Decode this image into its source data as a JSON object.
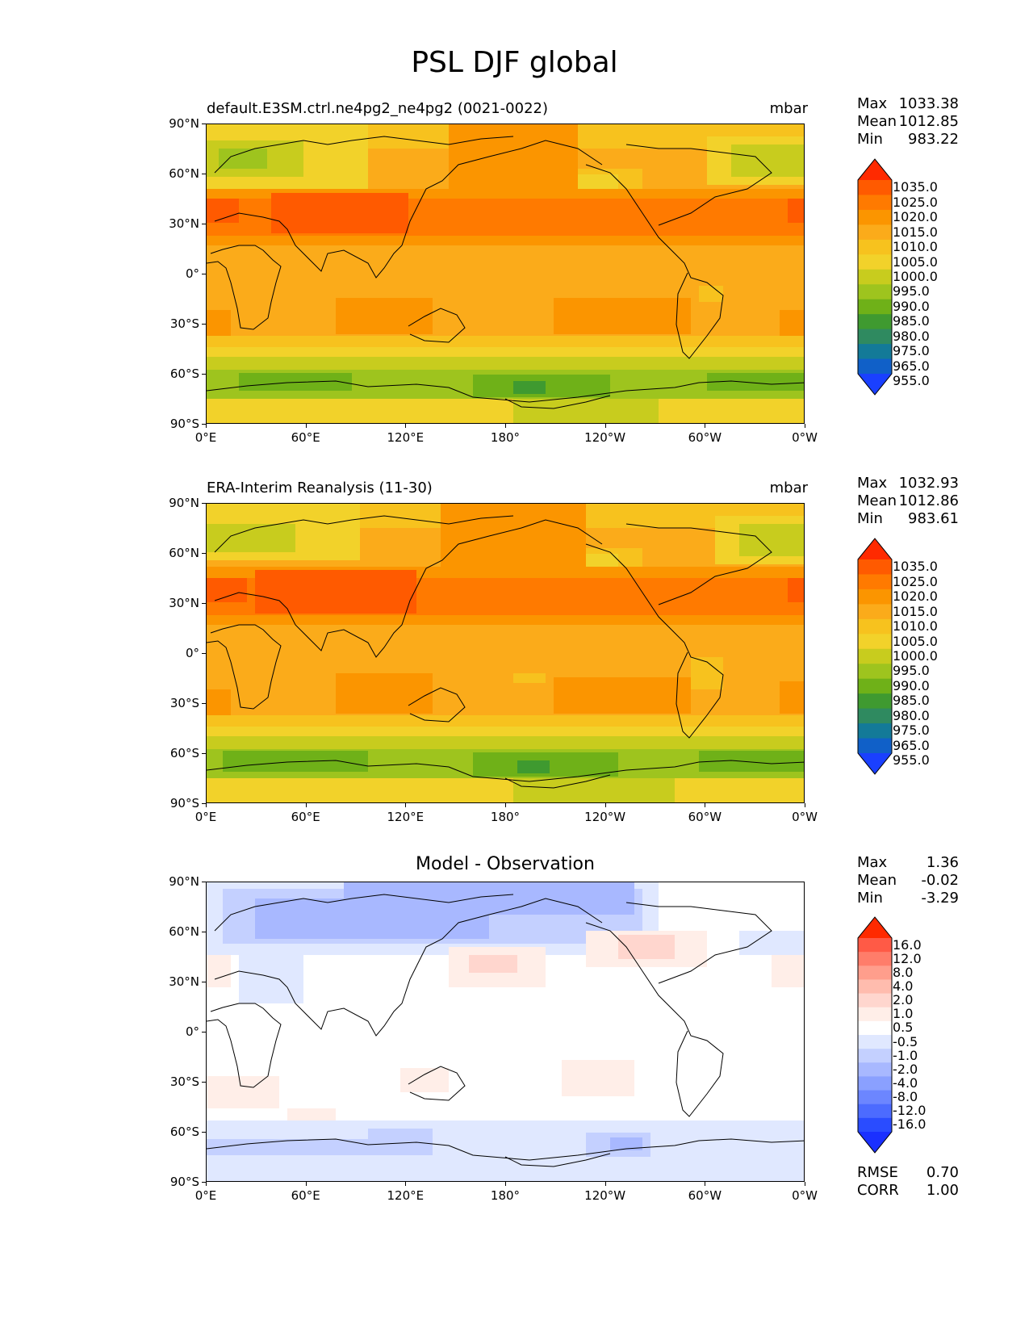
{
  "figure": {
    "title": "PSL DJF global"
  },
  "panels": [
    {
      "id": "test",
      "title_left": "default.E3SM.ctrl.ne4pg2_ne4pg2 (0021-0022)",
      "title_center": "",
      "units": "mbar",
      "stats": [
        {
          "label": "Max",
          "value": "1033.38"
        },
        {
          "label": "Mean",
          "value": "1012.85"
        },
        {
          "label": "Min",
          "value": "983.22"
        }
      ],
      "colorbar": {
        "labels": [
          "1035.0",
          "1025.0",
          "1020.0",
          "1015.0",
          "1010.0",
          "1005.0",
          "1000.0",
          "995.0",
          "990.0",
          "985.0",
          "980.0",
          "975.0",
          "965.0",
          "955.0"
        ]
      }
    },
    {
      "id": "reference",
      "title_left": "ERA-Interim Reanalysis (11-30)",
      "title_center": "",
      "units": "mbar",
      "stats": [
        {
          "label": "Max",
          "value": "1032.93"
        },
        {
          "label": "Mean",
          "value": "1012.86"
        },
        {
          "label": "Min",
          "value": "983.61"
        }
      ],
      "colorbar": {
        "labels": [
          "1035.0",
          "1025.0",
          "1020.0",
          "1015.0",
          "1010.0",
          "1005.0",
          "1000.0",
          "995.0",
          "990.0",
          "985.0",
          "980.0",
          "975.0",
          "965.0",
          "955.0"
        ]
      }
    },
    {
      "id": "diff",
      "title_left": "",
      "title_center": "Model - Observation",
      "units": "",
      "stats": [
        {
          "label": "Max",
          "value": "1.36"
        },
        {
          "label": "Mean",
          "value": "-0.02"
        },
        {
          "label": "Min",
          "value": "-3.29"
        }
      ],
      "colorbar": {
        "labels": [
          "16.0",
          "12.0",
          "8.0",
          "4.0",
          "2.0",
          "1.0",
          "0.5",
          "-0.5",
          "-1.0",
          "-2.0",
          "-4.0",
          "-8.0",
          "-12.0",
          "-16.0"
        ]
      },
      "extra_stats": [
        {
          "label": "RMSE",
          "value": "0.70"
        },
        {
          "label": "CORR",
          "value": "1.00"
        }
      ]
    }
  ],
  "axes": {
    "lat_ticks": [
      "90°N",
      "60°N",
      "30°N",
      "0°",
      "30°S",
      "60°S",
      "90°S"
    ],
    "lon_ticks": [
      "0°E",
      "60°E",
      "120°E",
      "180°",
      "120°W",
      "60°W",
      "0°W"
    ]
  },
  "colors": {
    "psl": [
      "#ff2a00",
      "#ff5a00",
      "#ff7a00",
      "#fb9500",
      "#fbab1a",
      "#f7c21e",
      "#f2d22a",
      "#c8cc1e",
      "#9ec41e",
      "#6fb118",
      "#3f9a30",
      "#2f8a60",
      "#137a98",
      "#1060c8",
      "#1a40ff"
    ],
    "diff": [
      "#ff2a00",
      "#ff5a46",
      "#ff7d6a",
      "#ff9e8c",
      "#ffbcae",
      "#ffd6ce",
      "#ffeee8",
      "#ffffff",
      "#e0e8ff",
      "#c4d0ff",
      "#a8b8ff",
      "#8aa0ff",
      "#6c86ff",
      "#4c6bff",
      "#2a4cff",
      "#1a30ff"
    ]
  }
}
